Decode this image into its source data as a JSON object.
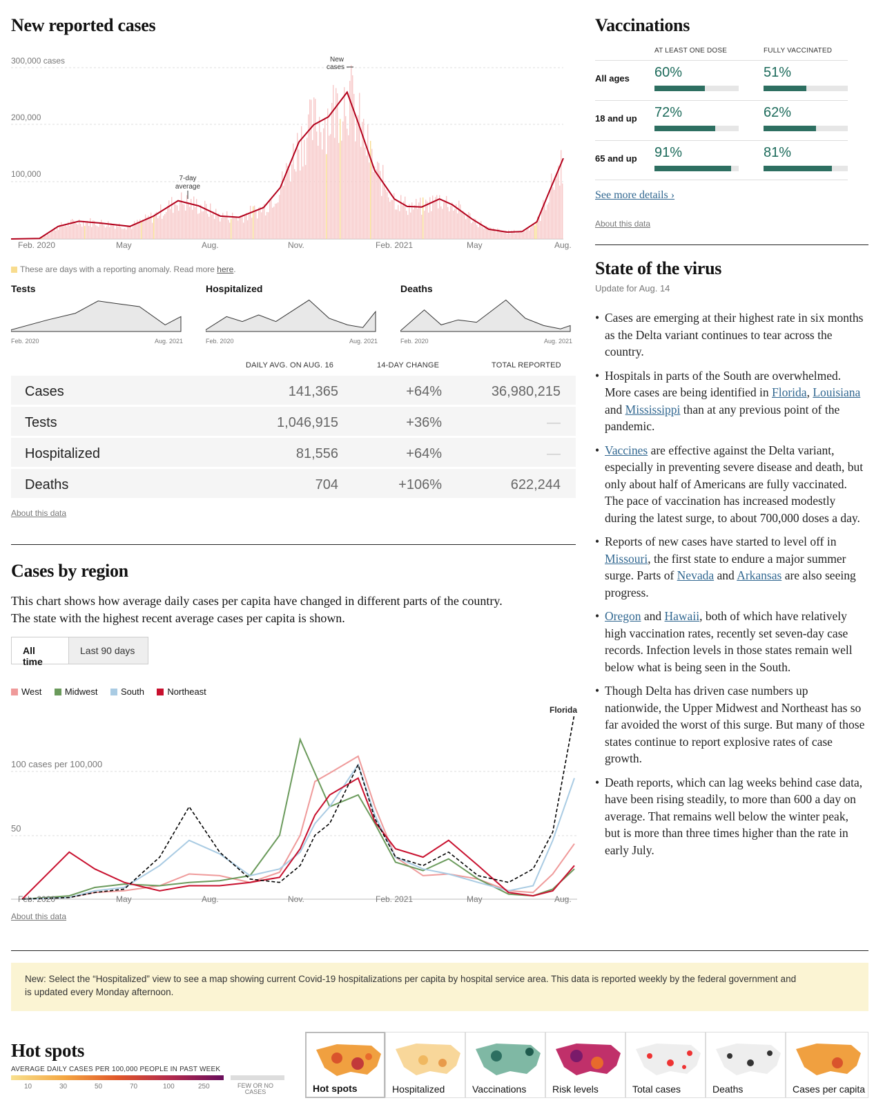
{
  "new_cases": {
    "title": "New reported cases",
    "y_ticks": [
      "300,000 cases",
      "200,000",
      "100,000"
    ],
    "x_ticks": [
      "Feb. 2020",
      "May",
      "Aug.",
      "Nov.",
      "Feb. 2021",
      "May",
      "Aug."
    ],
    "annotation_new": "New",
    "annotation_cases": "cases",
    "annotation_avg_1": "7-day",
    "annotation_avg_2": "average",
    "anomaly_note": "These are days with a reporting anomaly. Read more",
    "anomaly_link": "here",
    "anomaly_period": ".",
    "colors": {
      "line": "#b3001b",
      "bars": "#f7c8c8",
      "anomaly": "#f8dc8e"
    }
  },
  "chart_data": [
    {
      "type": "area",
      "title": "New reported cases",
      "ylabel": "cases",
      "ylim": [
        0,
        300000
      ],
      "x": [
        "2020-02-01",
        "2020-03-01",
        "2020-03-20",
        "2020-04-10",
        "2020-05-01",
        "2020-06-01",
        "2020-06-25",
        "2020-07-20",
        "2020-08-10",
        "2020-09-01",
        "2020-09-20",
        "2020-10-15",
        "2020-11-01",
        "2020-11-20",
        "2020-12-05",
        "2020-12-20",
        "2021-01-08",
        "2021-01-20",
        "2021-02-05",
        "2021-02-25",
        "2021-03-10",
        "2021-03-25",
        "2021-04-12",
        "2021-04-25",
        "2021-05-15",
        "2021-06-01",
        "2021-06-20",
        "2021-07-05",
        "2021-07-20",
        "2021-08-01",
        "2021-08-16"
      ],
      "series": [
        {
          "name": "7-day average",
          "values": [
            0,
            1000,
            22000,
            31000,
            28000,
            22000,
            40000,
            67000,
            58000,
            40000,
            38000,
            55000,
            90000,
            170000,
            200000,
            214000,
            257000,
            200000,
            120000,
            70000,
            57000,
            56000,
            70000,
            60000,
            35000,
            17000,
            12000,
            13000,
            30000,
            80000,
            141365
          ]
        }
      ]
    },
    {
      "type": "area",
      "title": "Tests",
      "x": [
        "2020-02-01",
        "2020-06-01",
        "2020-09-01",
        "2020-11-15",
        "2021-01-10",
        "2021-04-01",
        "2021-06-25",
        "2021-08-16"
      ],
      "series": [
        {
          "name": "Tests",
          "values": [
            0.05,
            0.35,
            0.55,
            0.92,
            0.85,
            0.75,
            0.2,
            0.45
          ]
        }
      ]
    },
    {
      "type": "area",
      "title": "Hospitalized",
      "x": [
        "2020-02-01",
        "2020-04-10",
        "2020-06-01",
        "2020-07-25",
        "2020-09-20",
        "2021-01-08",
        "2021-03-15",
        "2021-05-15",
        "2021-07-05",
        "2021-08-16"
      ],
      "series": [
        {
          "name": "Hospitalized",
          "values": [
            0.05,
            0.45,
            0.3,
            0.5,
            0.3,
            0.95,
            0.4,
            0.2,
            0.12,
            0.6
          ]
        }
      ]
    },
    {
      "type": "area",
      "title": "Deaths",
      "x": [
        "2020-02-01",
        "2020-04-20",
        "2020-06-15",
        "2020-08-10",
        "2020-10-10",
        "2021-01-15",
        "2021-03-20",
        "2021-05-20",
        "2021-07-15",
        "2021-08-16"
      ],
      "series": [
        {
          "name": "Deaths",
          "values": [
            0.02,
            0.65,
            0.2,
            0.35,
            0.28,
            0.95,
            0.4,
            0.18,
            0.08,
            0.18
          ]
        }
      ]
    },
    {
      "type": "line",
      "title": "Cases by region",
      "ylabel": "cases per 100,000",
      "ylim": [
        0,
        115
      ],
      "x": [
        "2020-02-01",
        "2020-03-20",
        "2020-04-15",
        "2020-05-15",
        "2020-06-20",
        "2020-07-20",
        "2020-08-20",
        "2020-09-20",
        "2020-10-20",
        "2020-11-10",
        "2020-11-25",
        "2020-12-10",
        "2021-01-08",
        "2021-01-25",
        "2021-02-15",
        "2021-03-15",
        "2021-04-10",
        "2021-05-10",
        "2021-06-10",
        "2021-07-05",
        "2021-07-25",
        "2021-08-16"
      ],
      "series": [
        {
          "name": "West",
          "values": [
            0,
            1,
            4,
            5,
            8,
            15,
            14,
            10,
            16,
            38,
            70,
            75,
            85,
            55,
            25,
            14,
            15,
            12,
            5,
            4,
            15,
            33
          ]
        },
        {
          "name": "Midwest",
          "values": [
            0,
            2,
            7,
            9,
            8,
            10,
            11,
            14,
            38,
            95,
            75,
            55,
            62,
            45,
            22,
            17,
            24,
            12,
            3,
            2,
            6,
            18
          ]
        },
        {
          "name": "South",
          "values": [
            0,
            1,
            5,
            7,
            20,
            35,
            27,
            14,
            18,
            28,
            45,
            55,
            80,
            50,
            25,
            18,
            15,
            10,
            5,
            8,
            35,
            72
          ]
        },
        {
          "name": "Northeast",
          "values": [
            0,
            28,
            18,
            10,
            5,
            8,
            8,
            10,
            13,
            30,
            50,
            62,
            72,
            46,
            30,
            25,
            35,
            20,
            4,
            2,
            5,
            20
          ]
        },
        {
          "name": "Florida",
          "values": [
            0,
            1,
            4,
            6,
            25,
            55,
            28,
            12,
            10,
            20,
            38,
            45,
            80,
            48,
            25,
            20,
            28,
            14,
            10,
            18,
            40,
            110
          ]
        }
      ]
    }
  ],
  "mini_charts": {
    "tests": {
      "title": "Tests",
      "x_start": "Feb. 2020",
      "x_end": "Aug. 2021"
    },
    "hospitalized": {
      "title": "Hospitalized",
      "x_start": "Feb. 2020",
      "x_end": "Aug. 2021"
    },
    "deaths": {
      "title": "Deaths",
      "x_start": "Feb. 2020",
      "x_end": "Aug. 2021"
    }
  },
  "stats": {
    "headers": {
      "daily": "DAILY AVG. ON AUG. 16",
      "change": "14-DAY CHANGE",
      "total": "TOTAL REPORTED"
    },
    "rows": [
      {
        "label": "Cases",
        "daily": "141,365",
        "change": "+64%",
        "total": "36,980,215"
      },
      {
        "label": "Tests",
        "daily": "1,046,915",
        "change": "+36%",
        "total": "—"
      },
      {
        "label": "Hospitalized",
        "daily": "81,556",
        "change": "+64%",
        "total": "—"
      },
      {
        "label": "Deaths",
        "daily": "704",
        "change": "+106%",
        "total": "622,244"
      }
    ],
    "about": "About this data"
  },
  "vaccinations": {
    "title": "Vaccinations",
    "col1": "AT LEAST ONE DOSE",
    "col2": "FULLY VACCINATED",
    "rows": [
      {
        "label": "All ages",
        "one_dose": "60%",
        "one_dose_frac": 0.6,
        "fully": "51%",
        "fully_frac": 0.51
      },
      {
        "label": "18 and up",
        "one_dose": "72%",
        "one_dose_frac": 0.72,
        "fully": "62%",
        "fully_frac": 0.62
      },
      {
        "label": "65 and up",
        "one_dose": "91%",
        "one_dose_frac": 0.91,
        "fully": "81%",
        "fully_frac": 0.81
      }
    ],
    "see_more": "See more details ›",
    "about": "About this data"
  },
  "state_of_virus": {
    "title": "State of the virus",
    "update": "Update for Aug. 14",
    "b1": "Cases are emerging at their highest rate in six months as the Delta variant continues to tear across the country.",
    "b2_a": "Hospitals in parts of the South are overwhelmed. More cases are being identified in ",
    "b2_l1": "Florida",
    "b2_b": ", ",
    "b2_l2": "Louisiana",
    "b2_c": " and ",
    "b2_l3": "Mississippi",
    "b2_d": " than at any previous point of the pandemic.",
    "b3_l1": "Vaccines",
    "b3_a": " are effective against the Delta variant, especially in preventing severe disease and death, but only about half of Americans are fully vaccinated. The pace of vaccination has increased modestly during the latest surge, to about 700,000 doses a day.",
    "b4_a": "Reports of new cases have started to level off in ",
    "b4_l1": "Missouri",
    "b4_b": ", the first state to endure a major summer surge. Parts of ",
    "b4_l2": "Nevada",
    "b4_c": " and ",
    "b4_l3": "Arkansas",
    "b4_d": " are also seeing progress.",
    "b5_l1": "Oregon",
    "b5_a": " and ",
    "b5_l2": "Hawaii",
    "b5_b": ", both of which have relatively high vaccination rates, recently set seven-day case records. Infection levels in those states remain well below what is being seen in the South.",
    "b6": "Though Delta has driven case numbers up nationwide, the Upper Midwest and Northeast has so far avoided the worst of this surge. But many of those states continue to report explosive rates of case growth.",
    "b7": "Death reports, which can lag weeks behind case data, have been rising steadily, to more than 600 a day on average. That remains well below the winter peak, but is more than three times higher than the rate in early July."
  },
  "region": {
    "title": "Cases by region",
    "desc1": "This chart shows how average daily cases per capita have changed in different parts of the country.",
    "desc2": "The state with the highest recent average cases per capita is shown.",
    "btn_all": "All time",
    "btn_90": "Last 90 days",
    "legend": [
      "West",
      "Midwest",
      "South",
      "Northeast"
    ],
    "colors": {
      "West": "#ef9a9a",
      "Midwest": "#6a9a5b",
      "South": "#a9cbe3",
      "Northeast": "#c8102e",
      "Florida": "#000000"
    },
    "state_label": "Florida",
    "y_ticks": [
      "100 cases per 100,000",
      "50"
    ],
    "x_ticks": [
      "Feb. 2020",
      "May",
      "Aug.",
      "Nov.",
      "Feb. 2021",
      "May",
      "Aug."
    ],
    "about": "About this data"
  },
  "notice": {
    "line1": "New: Select the “Hospitalized” view to see a map showing current Covid-19 hospitalizations per capita by hospital service area. This data is reported weekly by the federal government and",
    "line2": "is updated every Monday afternoon."
  },
  "hotspots": {
    "title": "Hot spots",
    "subtitle": "AVERAGE DAILY CASES PER 100,000 PEOPLE IN PAST WEEK",
    "scale": [
      "10",
      "30",
      "50",
      "70",
      "100",
      "250"
    ],
    "few_1": "FEW OR NO",
    "few_2": "CASES",
    "tabs": [
      "Hot spots",
      "Hospitalized",
      "Vaccinations",
      "Risk levels",
      "Total cases",
      "Deaths",
      "Cases per capita"
    ]
  }
}
